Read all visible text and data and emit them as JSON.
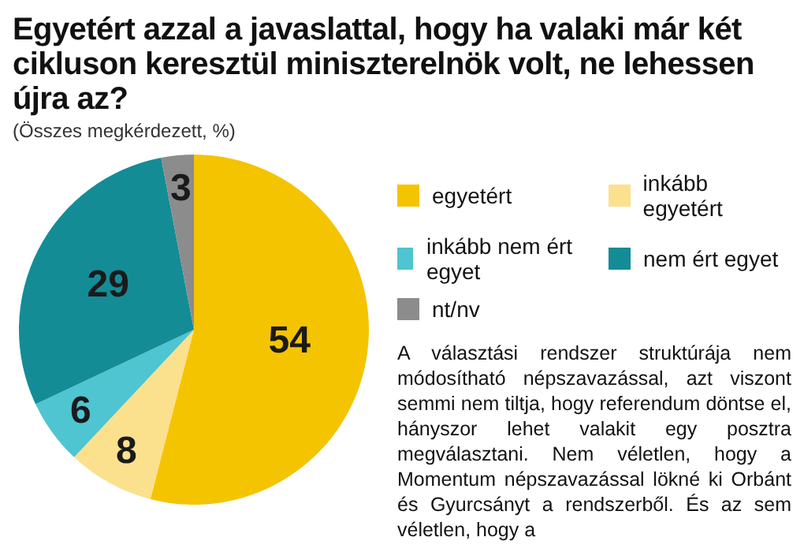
{
  "chart_data": {
    "type": "pie",
    "title": "Egyetért azzal a javaslattal, hogy ha valaki már két cikluson keresztül miniszterelnök volt, ne lehessen újra az?",
    "subtitle": "(Összes megkérdezett, %)",
    "categories": [
      "egyetért",
      "inkább egyetért",
      "inkább nem ért egyet",
      "nem ért egyet",
      "nt/nv"
    ],
    "values": [
      54,
      8,
      6,
      29,
      3
    ],
    "colors": [
      "#f5c400",
      "#fbe08e",
      "#4ec5d0",
      "#148c96",
      "#8c8c8c"
    ],
    "data_labels": true,
    "legend": "right",
    "annotations": [
      "A választási rendszer struktúrája nem módosítható népszavazással, azt viszont semmi nem tiltja, hogy referendum döntse el, hányszor lehet valakit egy posztra megválasztani. Nem véletlen, hogy a Momentum népszavazással lökné ki Orbánt és Gyurcsányt a rendszerből. És az sem véletlen, hogy a"
    ]
  }
}
